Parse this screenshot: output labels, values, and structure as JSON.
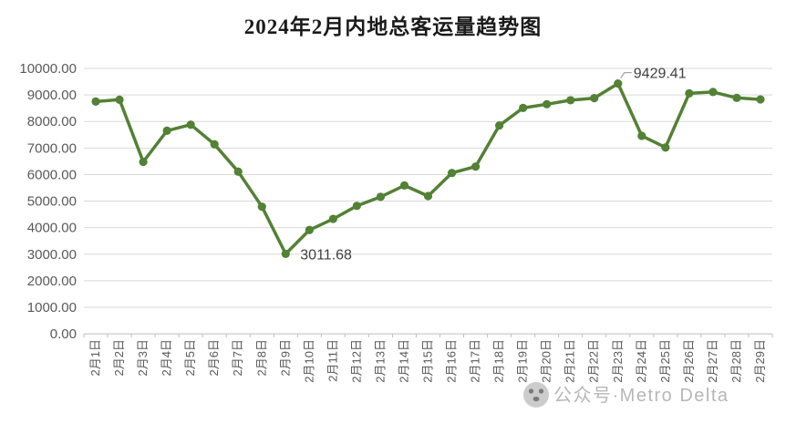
{
  "chart_data": {
    "type": "line",
    "title": "2024年2月内地总客运量趋势图",
    "categories": [
      "2月1日",
      "2月2日",
      "2月3日",
      "2月4日",
      "2月5日",
      "2月6日",
      "2月7日",
      "2月8日",
      "2月9日",
      "2月10日",
      "2月11日",
      "2月12日",
      "2月13日",
      "2月14日",
      "2月15日",
      "2月16日",
      "2月17日",
      "2月18日",
      "2月19日",
      "2月20日",
      "2月21日",
      "2月22日",
      "2月23日",
      "2月24日",
      "2月25日",
      "2月26日",
      "2月27日",
      "2月28日",
      "2月29日"
    ],
    "values": [
      8750,
      8820,
      6480,
      7650,
      7880,
      7140,
      6110,
      4790,
      3011.68,
      3910,
      4330,
      4820,
      5160,
      5590,
      5190,
      6060,
      6300,
      7850,
      8510,
      8650,
      8800,
      8880,
      9429.41,
      7460,
      7020,
      9060,
      9110,
      8890,
      8830
    ],
    "xlabel": "",
    "ylabel": "",
    "ylim": [
      0,
      10000
    ],
    "ytick_step": 1000,
    "ytick_labels": [
      "0.00",
      "1000.00",
      "2000.00",
      "3000.00",
      "4000.00",
      "5000.00",
      "6000.00",
      "7000.00",
      "8000.00",
      "9000.00",
      "10000.00"
    ],
    "grid": true,
    "legend": "none",
    "line_color": "#538135",
    "gridline_color": "#d9d9d9",
    "axis_line_color": "#bfbfbf",
    "axis_label_color": "#595959",
    "data_label_color": "#3f3f3f",
    "annotations": [
      {
        "index": 8,
        "label": "3011.68",
        "placement": "right"
      },
      {
        "index": 22,
        "label": "9429.41",
        "placement": "top-right-leader"
      }
    ]
  },
  "watermark": {
    "icon": "panda-logo",
    "label": "公众号·Metro Delta"
  }
}
